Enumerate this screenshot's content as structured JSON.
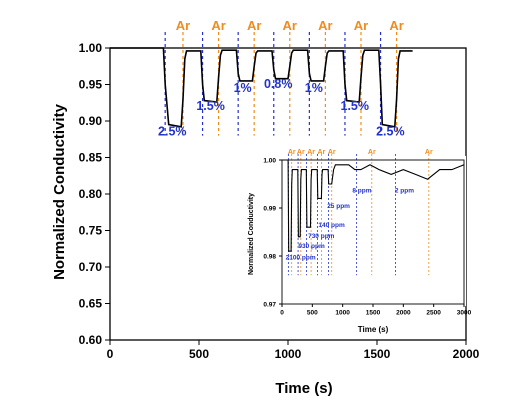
{
  "chart_data": [
    {
      "type": "line",
      "xlabel": "Time (s)",
      "ylabel": "Normalized Conductivity",
      "xlim": [
        0,
        2000
      ],
      "ylim": [
        0.6,
        1.0
      ],
      "xticks": [
        0,
        500,
        1000,
        1500,
        2000
      ],
      "yticks": [
        0.6,
        0.65,
        0.7,
        0.75,
        0.8,
        0.85,
        0.9,
        0.95,
        1.0
      ],
      "series": [
        {
          "x": [
            0,
            300,
            310,
            330,
            400,
            410,
            420,
            430,
            510,
            520,
            530,
            600,
            610,
            620,
            630,
            710,
            720,
            730,
            800,
            810,
            820,
            830,
            910,
            920,
            930,
            1000,
            1010,
            1020,
            1030,
            1110,
            1120,
            1130,
            1200,
            1210,
            1220,
            1230,
            1310,
            1320,
            1330,
            1400,
            1410,
            1420,
            1430,
            1510,
            1520,
            1530,
            1600,
            1610,
            1620,
            1630,
            1700
          ],
          "values": [
            1.0,
            1.0,
            0.95,
            0.895,
            0.892,
            0.93,
            0.985,
            0.996,
            0.996,
            0.95,
            0.928,
            0.926,
            0.96,
            0.99,
            0.997,
            0.997,
            0.965,
            0.955,
            0.955,
            0.975,
            0.993,
            0.996,
            0.996,
            0.97,
            0.958,
            0.958,
            0.975,
            0.993,
            0.997,
            0.997,
            0.965,
            0.955,
            0.955,
            0.975,
            0.993,
            0.996,
            0.996,
            0.95,
            0.928,
            0.926,
            0.96,
            0.99,
            0.997,
            0.997,
            0.95,
            0.895,
            0.892,
            0.93,
            0.985,
            0.996,
            0.996
          ]
        }
      ],
      "gas_on_times": [
        310,
        520,
        720,
        920,
        1120,
        1320,
        1520
      ],
      "gas_off_times": [
        410,
        610,
        810,
        1010,
        1210,
        1410,
        1610
      ],
      "annotations": {
        "ar_label": "Ar",
        "concentrations": [
          {
            "x": 350,
            "y": 0.88,
            "label": "2.5%"
          },
          {
            "x": 565,
            "y": 0.915,
            "label": "1.5%"
          },
          {
            "x": 745,
            "y": 0.94,
            "label": "1%"
          },
          {
            "x": 945,
            "y": 0.945,
            "label": "0.8%"
          },
          {
            "x": 1145,
            "y": 0.94,
            "label": "1%"
          },
          {
            "x": 1375,
            "y": 0.915,
            "label": "1.5%"
          },
          {
            "x": 1575,
            "y": 0.88,
            "label": "2.5%"
          }
        ]
      },
      "colors": {
        "line": "#000000",
        "gas_on": "#2233cc",
        "gas_off": "#f08c1e",
        "label_blue": "#2233cc",
        "label_orange": "#f08c1e"
      }
    },
    {
      "type": "line",
      "xlabel": "Time (s)",
      "ylabel": "Normalized Conductivity",
      "xlim": [
        0,
        3000
      ],
      "ylim": [
        0.97,
        1.0
      ],
      "xticks": [
        0,
        500,
        1000,
        1500,
        2000,
        2500,
        3000
      ],
      "yticks": [
        0.97,
        0.98,
        0.99,
        1.0
      ],
      "series": [
        {
          "x": [
            0,
            100,
            110,
            150,
            160,
            170,
            260,
            270,
            300,
            310,
            320,
            400,
            410,
            470,
            480,
            490,
            580,
            590,
            650,
            660,
            670,
            760,
            770,
            820,
            850,
            880,
            1100,
            1200,
            1300,
            1450,
            1600,
            1800,
            2000,
            2200,
            2400,
            2600,
            2800,
            3000
          ],
          "values": [
            1.0,
            1.0,
            0.981,
            0.981,
            0.995,
            0.998,
            0.998,
            0.984,
            0.984,
            0.996,
            0.998,
            0.998,
            0.986,
            0.986,
            0.996,
            0.998,
            0.998,
            0.992,
            0.992,
            0.997,
            0.998,
            0.998,
            0.995,
            0.995,
            0.998,
            0.999,
            0.999,
            0.998,
            0.998,
            0.999,
            0.998,
            0.997,
            0.998,
            0.997,
            0.996,
            0.998,
            0.998,
            0.999
          ]
        }
      ],
      "gas_on_times": [
        105,
        265,
        405,
        585,
        765,
        1230,
        1870
      ],
      "gas_off_times": [
        160,
        310,
        480,
        650,
        820,
        1480,
        2420
      ],
      "annotations": {
        "ar_label": "Ar",
        "concentrations": [
          {
            "x": 60,
            "y": 0.9793,
            "label": "2100 ppm"
          },
          {
            "x": 270,
            "y": 0.9817,
            "label": "930 ppm"
          },
          {
            "x": 430,
            "y": 0.9838,
            "label": "730 ppm"
          },
          {
            "x": 600,
            "y": 0.986,
            "label": "140 ppm"
          },
          {
            "x": 745,
            "y": 0.99,
            "label": "25 ppm"
          },
          {
            "x": 1160,
            "y": 0.9932,
            "label": "8 ppm"
          },
          {
            "x": 1860,
            "y": 0.9932,
            "label": "2 ppm"
          }
        ]
      },
      "colors": {
        "line": "#000000",
        "gas_on": "#2233cc",
        "gas_off": "#f08c1e",
        "label_blue": "#2233cc",
        "label_orange": "#f08c1e"
      }
    }
  ]
}
